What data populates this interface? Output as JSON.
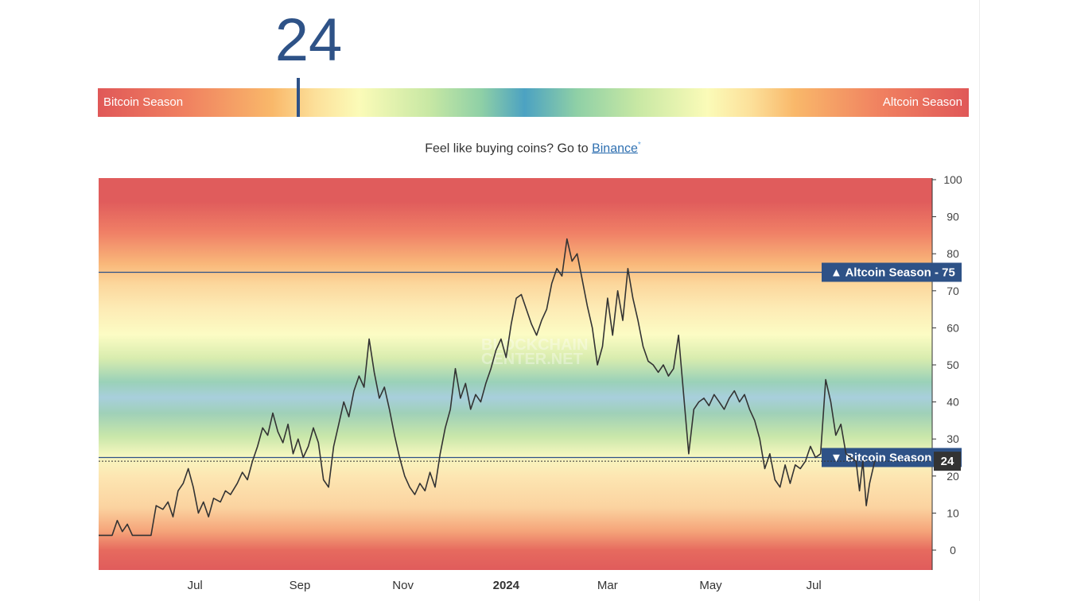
{
  "current_value": "24",
  "gauge": {
    "left_label": "Bitcoin Season",
    "right_label": "Altcoin Season",
    "value": 24,
    "min": 0,
    "max": 100
  },
  "promo": {
    "text": "Feel like buying coins? Go to ",
    "link_text": "Binance",
    "link_suffix": "*"
  },
  "watermark": [
    "BLOCKCHAIN",
    "CENTER.NET"
  ],
  "colors": {
    "accent": "#2e5287",
    "line": "#333333",
    "label_bg": "#2e5287",
    "current_label_bg": "#333333"
  },
  "chart_data": {
    "type": "line",
    "title": "",
    "xlabel": "",
    "ylabel": "",
    "ylim": [
      0,
      100
    ],
    "yticks": [
      0,
      10,
      20,
      30,
      40,
      50,
      60,
      70,
      80,
      90,
      100
    ],
    "x_range": [
      "2023-05-05",
      "2024-09-09"
    ],
    "x_tick_labels": [
      {
        "label": "Jul",
        "date": "2023-07-01",
        "bold": false
      },
      {
        "label": "Sep",
        "date": "2023-09-01",
        "bold": false
      },
      {
        "label": "Nov",
        "date": "2023-11-01",
        "bold": false
      },
      {
        "label": "2024",
        "date": "2024-01-01",
        "bold": true
      },
      {
        "label": "Mar",
        "date": "2024-03-01",
        "bold": false
      },
      {
        "label": "May",
        "date": "2024-05-01",
        "bold": false
      },
      {
        "label": "Jul",
        "date": "2024-07-01",
        "bold": false
      }
    ],
    "thresholds": [
      {
        "label": "▲ Altcoin Season",
        "value": 75
      },
      {
        "label": "▼ Bitcoin Season",
        "value": 25
      }
    ],
    "current": {
      "label": "24",
      "value": 24
    },
    "series": [
      {
        "points": [
          [
            "2023-05-05",
            4
          ],
          [
            "2023-05-13",
            4
          ],
          [
            "2023-05-16",
            8
          ],
          [
            "2023-05-19",
            5
          ],
          [
            "2023-05-22",
            7
          ],
          [
            "2023-05-25",
            4
          ],
          [
            "2023-06-05",
            4
          ],
          [
            "2023-06-08",
            12
          ],
          [
            "2023-06-12",
            11
          ],
          [
            "2023-06-15",
            13
          ],
          [
            "2023-06-18",
            9
          ],
          [
            "2023-06-21",
            16
          ],
          [
            "2023-06-24",
            18
          ],
          [
            "2023-06-27",
            22
          ],
          [
            "2023-06-30",
            17
          ],
          [
            "2023-07-03",
            10
          ],
          [
            "2023-07-06",
            13
          ],
          [
            "2023-07-09",
            9
          ],
          [
            "2023-07-12",
            14
          ],
          [
            "2023-07-16",
            13
          ],
          [
            "2023-07-19",
            16
          ],
          [
            "2023-07-22",
            15
          ],
          [
            "2023-07-26",
            18
          ],
          [
            "2023-07-29",
            21
          ],
          [
            "2023-08-01",
            19
          ],
          [
            "2023-08-04",
            24
          ],
          [
            "2023-08-07",
            28
          ],
          [
            "2023-08-10",
            33
          ],
          [
            "2023-08-13",
            31
          ],
          [
            "2023-08-16",
            37
          ],
          [
            "2023-08-19",
            32
          ],
          [
            "2023-08-22",
            29
          ],
          [
            "2023-08-25",
            34
          ],
          [
            "2023-08-28",
            26
          ],
          [
            "2023-08-31",
            30
          ],
          [
            "2023-09-03",
            25
          ],
          [
            "2023-09-06",
            28
          ],
          [
            "2023-09-09",
            33
          ],
          [
            "2023-09-12",
            29
          ],
          [
            "2023-09-15",
            19
          ],
          [
            "2023-09-18",
            17
          ],
          [
            "2023-09-21",
            28
          ],
          [
            "2023-09-24",
            34
          ],
          [
            "2023-09-27",
            40
          ],
          [
            "2023-09-30",
            36
          ],
          [
            "2023-10-03",
            43
          ],
          [
            "2023-10-06",
            47
          ],
          [
            "2023-10-09",
            44
          ],
          [
            "2023-10-12",
            57
          ],
          [
            "2023-10-15",
            48
          ],
          [
            "2023-10-18",
            41
          ],
          [
            "2023-10-21",
            44
          ],
          [
            "2023-10-24",
            38
          ],
          [
            "2023-10-27",
            31
          ],
          [
            "2023-10-30",
            25
          ],
          [
            "2023-11-02",
            20
          ],
          [
            "2023-11-05",
            17
          ],
          [
            "2023-11-08",
            15
          ],
          [
            "2023-11-11",
            18
          ],
          [
            "2023-11-14",
            16
          ],
          [
            "2023-11-17",
            21
          ],
          [
            "2023-11-20",
            17
          ],
          [
            "2023-11-23",
            26
          ],
          [
            "2023-11-26",
            33
          ],
          [
            "2023-11-29",
            38
          ],
          [
            "2023-12-02",
            49
          ],
          [
            "2023-12-05",
            41
          ],
          [
            "2023-12-08",
            45
          ],
          [
            "2023-12-11",
            38
          ],
          [
            "2023-12-14",
            42
          ],
          [
            "2023-12-17",
            40
          ],
          [
            "2023-12-20",
            45
          ],
          [
            "2023-12-23",
            49
          ],
          [
            "2023-12-26",
            54
          ],
          [
            "2023-12-29",
            57
          ],
          [
            "2024-01-01",
            52
          ],
          [
            "2024-01-04",
            61
          ],
          [
            "2024-01-07",
            68
          ],
          [
            "2024-01-10",
            69
          ],
          [
            "2024-01-13",
            65
          ],
          [
            "2024-01-16",
            61
          ],
          [
            "2024-01-19",
            58
          ],
          [
            "2024-01-22",
            62
          ],
          [
            "2024-01-25",
            65
          ],
          [
            "2024-01-28",
            72
          ],
          [
            "2024-01-31",
            76
          ],
          [
            "2024-02-03",
            74
          ],
          [
            "2024-02-06",
            84
          ],
          [
            "2024-02-09",
            78
          ],
          [
            "2024-02-12",
            80
          ],
          [
            "2024-02-15",
            73
          ],
          [
            "2024-02-18",
            66
          ],
          [
            "2024-02-21",
            60
          ],
          [
            "2024-02-24",
            50
          ],
          [
            "2024-02-27",
            55
          ],
          [
            "2024-03-01",
            68
          ],
          [
            "2024-03-04",
            58
          ],
          [
            "2024-03-07",
            70
          ],
          [
            "2024-03-10",
            62
          ],
          [
            "2024-03-13",
            76
          ],
          [
            "2024-03-16",
            68
          ],
          [
            "2024-03-19",
            62
          ],
          [
            "2024-03-22",
            55
          ],
          [
            "2024-03-25",
            51
          ],
          [
            "2024-03-28",
            50
          ],
          [
            "2024-03-31",
            48
          ],
          [
            "2024-04-03",
            50
          ],
          [
            "2024-04-06",
            47
          ],
          [
            "2024-04-09",
            49
          ],
          [
            "2024-04-12",
            58
          ],
          [
            "2024-04-15",
            42
          ],
          [
            "2024-04-18",
            26
          ],
          [
            "2024-04-21",
            38
          ],
          [
            "2024-04-24",
            40
          ],
          [
            "2024-04-27",
            41
          ],
          [
            "2024-04-30",
            39
          ],
          [
            "2024-05-03",
            42
          ],
          [
            "2024-05-06",
            40
          ],
          [
            "2024-05-09",
            38
          ],
          [
            "2024-05-12",
            41
          ],
          [
            "2024-05-15",
            43
          ],
          [
            "2024-05-18",
            40
          ],
          [
            "2024-05-21",
            42
          ],
          [
            "2024-05-24",
            38
          ],
          [
            "2024-05-27",
            35
          ],
          [
            "2024-05-30",
            30
          ],
          [
            "2024-06-02",
            22
          ],
          [
            "2024-06-05",
            26
          ],
          [
            "2024-06-08",
            19
          ],
          [
            "2024-06-11",
            17
          ],
          [
            "2024-06-14",
            23
          ],
          [
            "2024-06-17",
            18
          ],
          [
            "2024-06-20",
            23
          ],
          [
            "2024-06-23",
            22
          ],
          [
            "2024-06-26",
            24
          ],
          [
            "2024-06-29",
            28
          ],
          [
            "2024-07-02",
            25
          ],
          [
            "2024-07-05",
            26
          ],
          [
            "2024-07-08",
            46
          ],
          [
            "2024-07-11",
            40
          ],
          [
            "2024-07-14",
            31
          ],
          [
            "2024-07-17",
            34
          ],
          [
            "2024-07-20",
            26
          ],
          [
            "2024-07-23",
            25
          ],
          [
            "2024-07-26",
            24
          ],
          [
            "2024-07-28",
            16
          ],
          [
            "2024-07-30",
            24
          ],
          [
            "2024-08-01",
            12
          ],
          [
            "2024-08-03",
            18
          ],
          [
            "2024-08-06",
            24
          ]
        ]
      }
    ]
  }
}
